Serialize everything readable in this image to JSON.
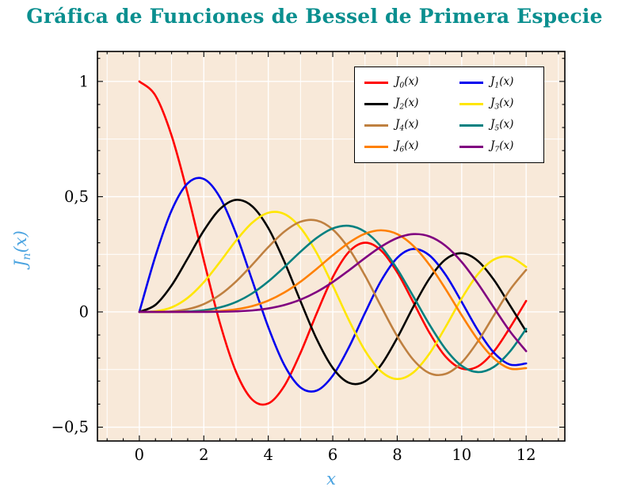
{
  "title": "Gráfica de Funciones de Bessel de Primera Especie",
  "colors": {
    "title": "#0a8f8f",
    "axis_label": "#4aa3e0",
    "plot_background": "#f8e9d9",
    "grid": "#ffffff",
    "frame": "#000000",
    "tick_label": "#000000"
  },
  "chart_data": {
    "type": "line",
    "title": "Gráfica de Funciones de Bessel de Primera Especie",
    "xlabel": "x",
    "ylabel": "J_n(x)",
    "xlim": [
      -1.3,
      13.2
    ],
    "ylim": [
      -0.56,
      1.13
    ],
    "grid": true,
    "legend_position": "top-right",
    "x_ticks": {
      "values": [
        0,
        2,
        4,
        6,
        8,
        10,
        12
      ],
      "labels": [
        "0",
        "2",
        "4",
        "6",
        "8",
        "10",
        "12"
      ]
    },
    "y_ticks": {
      "values": [
        -0.5,
        0,
        0.5,
        1
      ],
      "labels": [
        "−0,5",
        "0",
        "0,5",
        "1"
      ]
    },
    "x": [
      0,
      0.5,
      1,
      1.5,
      2,
      2.5,
      3,
      3.5,
      4,
      4.5,
      5,
      5.5,
      6,
      6.5,
      7,
      7.5,
      8,
      8.5,
      9,
      9.5,
      10,
      10.5,
      11,
      11.5,
      12
    ],
    "series": [
      {
        "name": "J_0(x)",
        "order": 0,
        "color": "#ff0000",
        "values": [
          1,
          0.9385,
          0.7652,
          0.5118,
          0.2239,
          -0.0484,
          -0.2601,
          -0.3801,
          -0.3971,
          -0.3205,
          -0.1776,
          -0.0068,
          0.1506,
          0.2601,
          0.3001,
          0.2663,
          0.1717,
          0.0419,
          -0.0903,
          -0.1939,
          -0.2459,
          -0.2366,
          -0.1712,
          -0.0677,
          0.0477
        ]
      },
      {
        "name": "J_1(x)",
        "order": 1,
        "color": "#0000ee",
        "values": [
          0,
          0.2423,
          0.4401,
          0.5579,
          0.5767,
          0.4971,
          0.3391,
          0.1374,
          -0.066,
          -0.2311,
          -0.3276,
          -0.3414,
          -0.2767,
          -0.1538,
          -0.0047,
          0.1352,
          0.2346,
          0.2731,
          0.2453,
          0.1613,
          0.0435,
          -0.0789,
          -0.1768,
          -0.2284,
          -0.2234
        ]
      },
      {
        "name": "J_2(x)",
        "order": 2,
        "color": "#000000",
        "values": [
          0,
          0.0306,
          0.1149,
          0.2321,
          0.3528,
          0.4461,
          0.4861,
          0.4586,
          0.3641,
          0.2178,
          0.0466,
          -0.1173,
          -0.2429,
          -0.3074,
          -0.3014,
          -0.2303,
          -0.113,
          0.0223,
          0.1448,
          0.2279,
          0.2546,
          0.2216,
          0.139,
          0.0279,
          -0.0849
        ]
      },
      {
        "name": "J_3(x)",
        "order": 3,
        "color": "#ffe600",
        "values": [
          0,
          0.0026,
          0.0196,
          0.061,
          0.1289,
          0.2166,
          0.3091,
          0.3868,
          0.4302,
          0.4247,
          0.3648,
          0.2561,
          0.1148,
          -0.0353,
          -0.1676,
          -0.2581,
          -0.2911,
          -0.2626,
          -0.1809,
          -0.0653,
          0.0584,
          0.1633,
          0.2273,
          0.2381,
          0.1951
        ]
      },
      {
        "name": "J_4(x)",
        "order": 4,
        "color": "#bf8040",
        "values": [
          0,
          0.0002,
          0.0025,
          0.0118,
          0.034,
          0.0738,
          0.132,
          0.2044,
          0.2811,
          0.3484,
          0.3912,
          0.3967,
          0.3576,
          0.2748,
          0.1578,
          0.0238,
          -0.1054,
          -0.2077,
          -0.2655,
          -0.269,
          -0.2196,
          -0.1283,
          -0.015,
          0.0963,
          0.1825
        ]
      },
      {
        "name": "J_5(x)",
        "order": 5,
        "color": "#008080",
        "values": [
          0,
          0,
          0.0002,
          0.0018,
          0.007,
          0.0195,
          0.043,
          0.0804,
          0.1321,
          0.1947,
          0.2611,
          0.3209,
          0.3621,
          0.3736,
          0.3479,
          0.2833,
          0.1858,
          0.0671,
          -0.055,
          -0.1613,
          -0.2341,
          -0.2611,
          -0.2383,
          -0.1711,
          -0.0735
        ]
      },
      {
        "name": "J_6(x)",
        "order": 6,
        "color": "#ff8000",
        "values": [
          0,
          0,
          0,
          0.0002,
          0.0012,
          0.0042,
          0.0114,
          0.0254,
          0.0491,
          0.0843,
          0.131,
          0.1868,
          0.2458,
          0.2999,
          0.3392,
          0.3541,
          0.3376,
          0.2867,
          0.2043,
          0.0993,
          -0.0145,
          -0.1203,
          -0.2016,
          -0.2458,
          -0.2437
        ]
      },
      {
        "name": "J_7(x)",
        "order": 7,
        "color": "#800080",
        "values": [
          0,
          0,
          0,
          0,
          0.0002,
          0.0008,
          0.0025,
          0.0063,
          0.0152,
          0.03,
          0.0534,
          0.0866,
          0.1296,
          0.1801,
          0.2336,
          0.2832,
          0.3206,
          0.3376,
          0.3275,
          0.2868,
          0.2167,
          0.1236,
          0.0184,
          -0.0846,
          -0.1703
        ]
      }
    ]
  }
}
